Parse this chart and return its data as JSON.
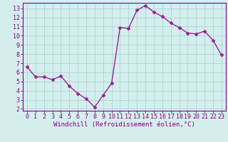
{
  "x": [
    0,
    1,
    2,
    3,
    4,
    5,
    6,
    7,
    8,
    9,
    10,
    11,
    12,
    13,
    14,
    15,
    16,
    17,
    18,
    19,
    20,
    21,
    22,
    23
  ],
  "y": [
    6.6,
    5.5,
    5.5,
    5.2,
    5.6,
    4.5,
    3.7,
    3.1,
    2.2,
    3.5,
    4.8,
    10.9,
    10.8,
    12.8,
    13.3,
    12.6,
    12.1,
    11.4,
    10.9,
    10.3,
    10.2,
    10.5,
    9.5,
    7.9
  ],
  "line_color": "#992299",
  "marker": "D",
  "marker_size": 2.5,
  "bg_color": "#d4eeee",
  "grid_color": "#b0d4d4",
  "xlabel": "Windchill (Refroidissement éolien,°C)",
  "xlim": [
    -0.5,
    23.5
  ],
  "ylim": [
    1.8,
    13.6
  ],
  "yticks": [
    2,
    3,
    4,
    5,
    6,
    7,
    8,
    9,
    10,
    11,
    12,
    13
  ],
  "xticks": [
    0,
    1,
    2,
    3,
    4,
    5,
    6,
    7,
    8,
    9,
    10,
    11,
    12,
    13,
    14,
    15,
    16,
    17,
    18,
    19,
    20,
    21,
    22,
    23
  ],
  "tick_color": "#880088",
  "axis_color": "#880088",
  "xlabel_fontsize": 6.5,
  "tick_fontsize": 6.0,
  "linewidth": 1.0,
  "spine_color": "#880088"
}
